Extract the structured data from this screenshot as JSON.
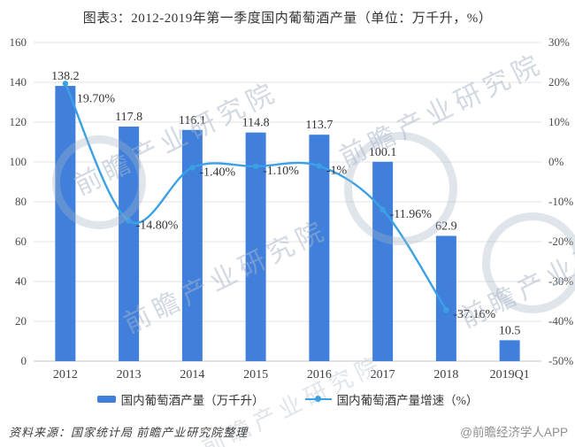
{
  "title": "图表3：2012-2019年第一季度国内葡萄酒产量（单位：万千升，%）",
  "chart_data": {
    "type": "bar",
    "subtype": "bar+line combo, dual axis",
    "categories": [
      "2012",
      "2013",
      "2014",
      "2015",
      "2016",
      "2017",
      "2018",
      "2019Q1"
    ],
    "series": [
      {
        "name": "国内葡萄酒产量（万千升）",
        "type": "bar",
        "axis": "left",
        "color": "#4080DC",
        "values": [
          138.2,
          117.8,
          116.1,
          114.8,
          113.7,
          100.1,
          62.9,
          10.5
        ],
        "labels": [
          "138.2",
          "117.8",
          "116.1",
          "114.8",
          "113.7",
          "100.1",
          "62.9",
          "10.5"
        ]
      },
      {
        "name": "国内葡萄酒产量增速（%）",
        "type": "line",
        "axis": "right",
        "color": "#3BA0E4",
        "values": [
          19.7,
          -14.8,
          -1.4,
          -1.1,
          -1.0,
          -11.96,
          -37.16
        ],
        "labels": [
          "19.70%",
          "-14.80%",
          "-1.40%",
          "-1.10%",
          "-1%",
          "-11.96%",
          "-37.16%"
        ]
      }
    ],
    "left_axis": {
      "min": 0,
      "max": 160,
      "step": 20,
      "ticks": [
        "0",
        "20",
        "40",
        "60",
        "80",
        "100",
        "120",
        "140",
        "160"
      ]
    },
    "right_axis": {
      "min": -50,
      "max": 30,
      "step": 10,
      "ticks": [
        "30%",
        "20%",
        "10%",
        "0%",
        "-10%",
        "-20%",
        "-30%",
        "-40%",
        "-50%"
      ]
    },
    "grid": true,
    "legend_position": "bottom"
  },
  "legend": {
    "items": [
      {
        "label": "国内葡萄酒产量（万千升）",
        "marker": "bar",
        "color": "#4080DC"
      },
      {
        "label": "国内葡萄酒产量增速（%）",
        "marker": "line",
        "color": "#3BA0E4"
      }
    ]
  },
  "footer": {
    "source": "资料来源：国家统计局 前瞻产业研究院整理",
    "credit": "@前瞻经济学人APP"
  },
  "watermark": {
    "text": "前瞻产业研究院"
  },
  "colors": {
    "bar": "#4080DC",
    "line": "#3BA0E4",
    "grid": "#E3E3E3",
    "axis_line": "#C6C6C6",
    "axis_text": "#4A4A4A",
    "label_text": "#333333",
    "watermark": "#D9DFE6"
  }
}
